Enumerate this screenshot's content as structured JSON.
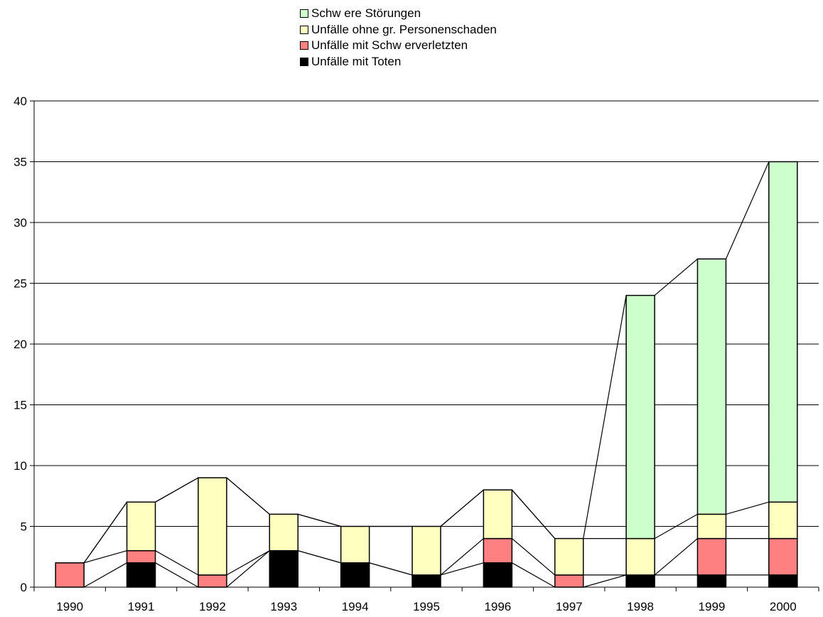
{
  "chart_data": {
    "type": "bar",
    "stacked": true,
    "series_lines": true,
    "categories": [
      "1990",
      "1991",
      "1992",
      "1993",
      "1994",
      "1995",
      "1996",
      "1997",
      "1998",
      "1999",
      "2000"
    ],
    "series": [
      {
        "name": "Unfälle mit Toten",
        "color": "#000000",
        "values": [
          0,
          2,
          0,
          3,
          2,
          1,
          2,
          0,
          1,
          1,
          1
        ]
      },
      {
        "name": "Unfälle mit Schw erverletzten",
        "color": "#FF8080",
        "values": [
          2,
          1,
          1,
          0,
          0,
          0,
          2,
          1,
          0,
          3,
          3
        ]
      },
      {
        "name": "Unfälle ohne gr. Personenschaden",
        "color": "#FFFFC0",
        "values": [
          0,
          4,
          8,
          3,
          3,
          4,
          4,
          3,
          3,
          2,
          3
        ]
      },
      {
        "name": "Schw ere Störungen",
        "color": "#CCFFCC",
        "values": [
          0,
          0,
          0,
          0,
          0,
          0,
          0,
          0,
          20,
          21,
          28
        ]
      }
    ],
    "legend_order": [
      "Schw ere Störungen",
      "Unfälle ohne gr. Personenschaden",
      "Unfälle mit Schw erverletzten",
      "Unfälle mit Toten"
    ],
    "ylim": [
      0,
      40
    ],
    "yticks": [
      "0",
      "5",
      "10",
      "15",
      "20",
      "25",
      "30",
      "35",
      "40"
    ],
    "grid": true,
    "legend_position": "top"
  }
}
